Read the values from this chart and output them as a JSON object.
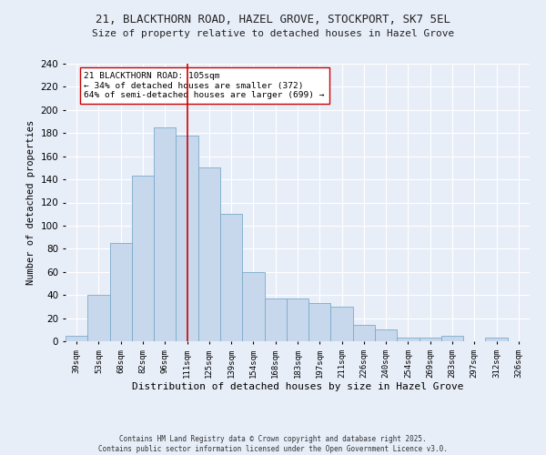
{
  "title1": "21, BLACKTHORN ROAD, HAZEL GROVE, STOCKPORT, SK7 5EL",
  "title2": "Size of property relative to detached houses in Hazel Grove",
  "xlabel": "Distribution of detached houses by size in Hazel Grove",
  "ylabel": "Number of detached properties",
  "categories": [
    "39sqm",
    "53sqm",
    "68sqm",
    "82sqm",
    "96sqm",
    "111sqm",
    "125sqm",
    "139sqm",
    "154sqm",
    "168sqm",
    "183sqm",
    "197sqm",
    "211sqm",
    "226sqm",
    "240sqm",
    "254sqm",
    "269sqm",
    "283sqm",
    "297sqm",
    "312sqm",
    "326sqm"
  ],
  "values": [
    5,
    40,
    85,
    143,
    185,
    178,
    150,
    110,
    60,
    37,
    37,
    33,
    30,
    14,
    10,
    3,
    3,
    5,
    0,
    3,
    0
  ],
  "bar_color": "#c8d8ec",
  "bar_edge_color": "#7aaaca",
  "vline_index": 5,
  "vline_color": "#cc0000",
  "annotation_text": "21 BLACKTHORN ROAD: 105sqm\n← 34% of detached houses are smaller (372)\n64% of semi-detached houses are larger (699) →",
  "annotation_box_color": "#ffffff",
  "annotation_box_edge": "#cc0000",
  "ylim": [
    0,
    240
  ],
  "yticks": [
    0,
    20,
    40,
    60,
    80,
    100,
    120,
    140,
    160,
    180,
    200,
    220,
    240
  ],
  "bg_color": "#e8eef8",
  "grid_color": "#ffffff",
  "footnote": "Contains HM Land Registry data © Crown copyright and database right 2025.\nContains public sector information licensed under the Open Government Licence v3.0."
}
